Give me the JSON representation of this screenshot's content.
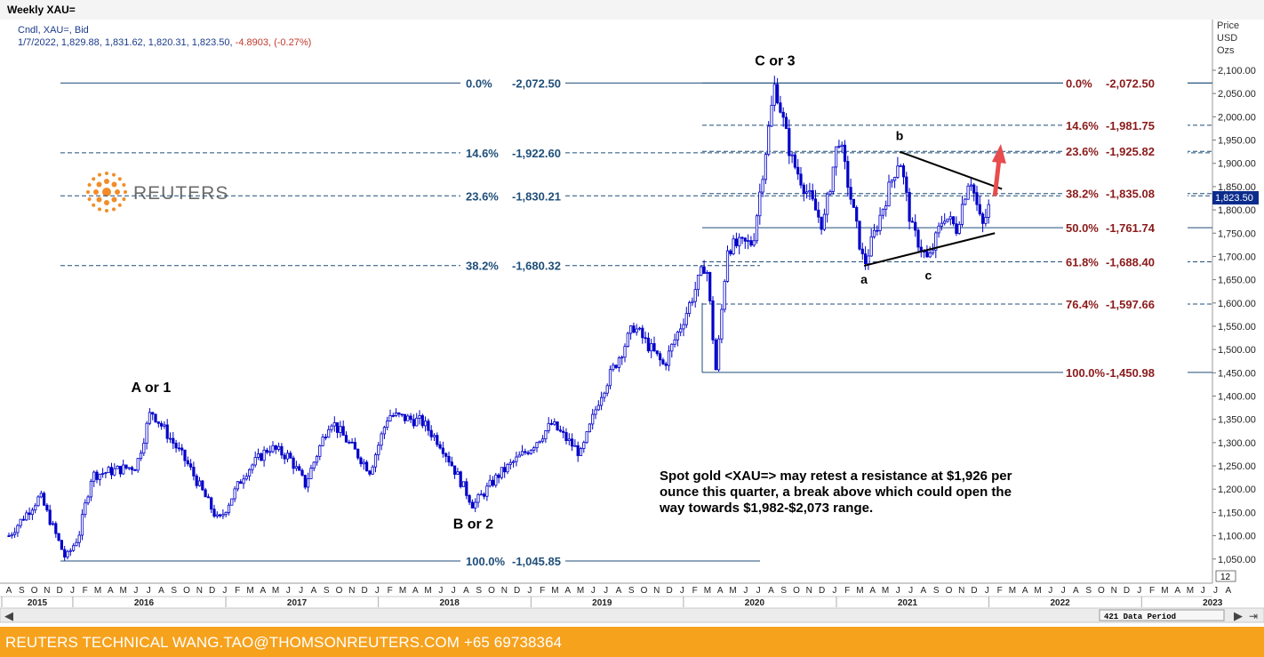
{
  "window": {
    "title": "Weekly XAU="
  },
  "header": {
    "instrument": "Cndl, XAU=, Bid",
    "ohlc_values": "1/7/2022, 1,829.88, 1,831.62, 1,820.31, 1,823.50,",
    "change": "-4.8903, (-0.27%)"
  },
  "axis": {
    "price_label_lines": [
      "Price",
      "USD",
      "Ozs"
    ],
    "corner_value": "12"
  },
  "scrollbar": {
    "data_period": "421 Data Period"
  },
  "footer": {
    "text": "REUTERS TECHNICAL  WANG.TAO@THOMSONREUTERS.COM  +65 69738364"
  },
  "logo": {
    "text": "REUTERS"
  },
  "colors": {
    "candle": "#0000c8",
    "fib_left": "#1f4e79",
    "fib_right": "#8b1a1a",
    "current_price_tag": "#0b2c8c",
    "footer_bg": "#f6a21d",
    "arrow": "#e84c4c"
  },
  "chart_data": {
    "type": "candlestick",
    "frequency": "weekly",
    "last_bar": {
      "date": "1/7/2022",
      "open": 1829.88,
      "high": 1831.62,
      "low": 1820.31,
      "close": 1823.5,
      "change": -4.8903,
      "change_pct": -0.27
    },
    "current_price_label": "1,823.50",
    "y_axis": {
      "min": 1000,
      "max": 2150,
      "ticks": [
        "1,050.00",
        "1,100.00",
        "1,150.00",
        "1,200.00",
        "1,250.00",
        "1,300.00",
        "1,350.00",
        "1,400.00",
        "1,450.00",
        "1,500.00",
        "1,550.00",
        "1,600.00",
        "1,650.00",
        "1,700.00",
        "1,750.00",
        "1,800.00",
        "1,850.00",
        "1,900.00",
        "1,950.00",
        "2,000.00",
        "2,050.00",
        "2,100.00"
      ]
    },
    "x_axis": {
      "months": [
        "A",
        "S",
        "O",
        "N",
        "D",
        "J",
        "F",
        "M",
        "A",
        "M",
        "J",
        "J",
        "A",
        "S",
        "O",
        "N",
        "D",
        "J",
        "F",
        "M",
        "A",
        "M",
        "J",
        "J",
        "A",
        "S",
        "O",
        "N",
        "D",
        "J",
        "F",
        "M",
        "A",
        "M",
        "J",
        "J",
        "A",
        "S",
        "O",
        "N",
        "D",
        "J",
        "F",
        "M",
        "A",
        "M",
        "J",
        "J",
        "A",
        "S",
        "O",
        "N",
        "D",
        "J",
        "F",
        "M",
        "A",
        "M",
        "J",
        "J",
        "A",
        "S",
        "O",
        "N",
        "D",
        "J",
        "F",
        "M",
        "A",
        "M",
        "J",
        "J",
        "A",
        "S",
        "O",
        "N",
        "D",
        "J",
        "F",
        "M",
        "A",
        "M",
        "J",
        "J",
        "A",
        "S",
        "O",
        "N",
        "D",
        "J",
        "F",
        "M",
        "A",
        "M",
        "J",
        "J",
        "A"
      ],
      "years": [
        "2015",
        "2016",
        "2017",
        "2018",
        "2019",
        "2020",
        "2021",
        "2022",
        "2023"
      ]
    },
    "price_path": [
      [
        "2015-08-01",
        1100
      ],
      [
        "2015-10-15",
        1185
      ],
      [
        "2015-12-15",
        1050
      ],
      [
        "2016-01-15",
        1100
      ],
      [
        "2016-02-15",
        1230
      ],
      [
        "2016-06-01",
        1250
      ],
      [
        "2016-07-06",
        1370
      ],
      [
        "2016-10-01",
        1255
      ],
      [
        "2016-12-15",
        1130
      ],
      [
        "2017-02-15",
        1235
      ],
      [
        "2017-04-15",
        1290
      ],
      [
        "2017-06-01",
        1270
      ],
      [
        "2017-07-10",
        1210
      ],
      [
        "2017-09-08",
        1350
      ],
      [
        "2017-12-12",
        1240
      ],
      [
        "2018-01-25",
        1360
      ],
      [
        "2018-04-15",
        1345
      ],
      [
        "2018-06-01",
        1295
      ],
      [
        "2018-08-16",
        1165
      ],
      [
        "2018-10-15",
        1230
      ],
      [
        "2019-01-01",
        1290
      ],
      [
        "2019-02-20",
        1340
      ],
      [
        "2019-05-01",
        1275
      ],
      [
        "2019-06-15",
        1400
      ],
      [
        "2019-09-04",
        1550
      ],
      [
        "2019-11-15",
        1465
      ],
      [
        "2020-01-08",
        1580
      ],
      [
        "2020-02-24",
        1690
      ],
      [
        "2020-03-19",
        1451
      ],
      [
        "2020-04-15",
        1720
      ],
      [
        "2020-06-15",
        1730
      ],
      [
        "2020-08-07",
        2072.5
      ],
      [
        "2020-09-15",
        1910
      ],
      [
        "2020-11-30",
        1765
      ],
      [
        "2021-01-06",
        1959
      ],
      [
        "2021-03-08",
        1680
      ],
      [
        "2021-06-01",
        1916
      ],
      [
        "2021-06-30",
        1760
      ],
      [
        "2021-08-09",
        1688
      ],
      [
        "2021-09-15",
        1790
      ],
      [
        "2021-10-15",
        1760
      ],
      [
        "2021-11-16",
        1877
      ],
      [
        "2021-12-15",
        1760
      ],
      [
        "2022-01-07",
        1823.5
      ]
    ],
    "fib_retracement_left": [
      {
        "pct": "0.0%",
        "value": "2,072.50"
      },
      {
        "pct": "14.6%",
        "value": "1,922.60"
      },
      {
        "pct": "23.6%",
        "value": "1,830.21"
      },
      {
        "pct": "38.2%",
        "value": "1,680.32"
      },
      {
        "pct": "100.0%",
        "value": "1,045.85"
      }
    ],
    "fib_retracement_right": [
      {
        "pct": "0.0%",
        "value": "2,072.50"
      },
      {
        "pct": "14.6%",
        "value": "1,981.75"
      },
      {
        "pct": "23.6%",
        "value": "1,925.82"
      },
      {
        "pct": "38.2%",
        "value": "1,835.08"
      },
      {
        "pct": "50.0%",
        "value": "1,761.74"
      },
      {
        "pct": "61.8%",
        "value": "1,688.40"
      },
      {
        "pct": "76.4%",
        "value": "1,597.66"
      },
      {
        "pct": "100.0%",
        "value": "1,450.98"
      }
    ],
    "wave_labels": [
      "A or 1",
      "B or 2",
      "C or 3",
      "a",
      "b",
      "c"
    ],
    "triangle": {
      "upper": [
        [
          "2021-06-01",
          1925
        ],
        [
          "2022-02-01",
          1845
        ]
      ],
      "lower": [
        [
          "2021-03-08",
          1680
        ],
        [
          "2022-01-15",
          1750
        ]
      ]
    },
    "arrow": {
      "from": [
        "2022-01-15",
        1830
      ],
      "to": [
        "2022-01-25",
        1930
      ]
    },
    "annotation": "Spot gold <XAU=> may retest a resistance at $1,926 per ounce this quarter, a break above which could open the way towards $1,982-$2,073 range."
  }
}
